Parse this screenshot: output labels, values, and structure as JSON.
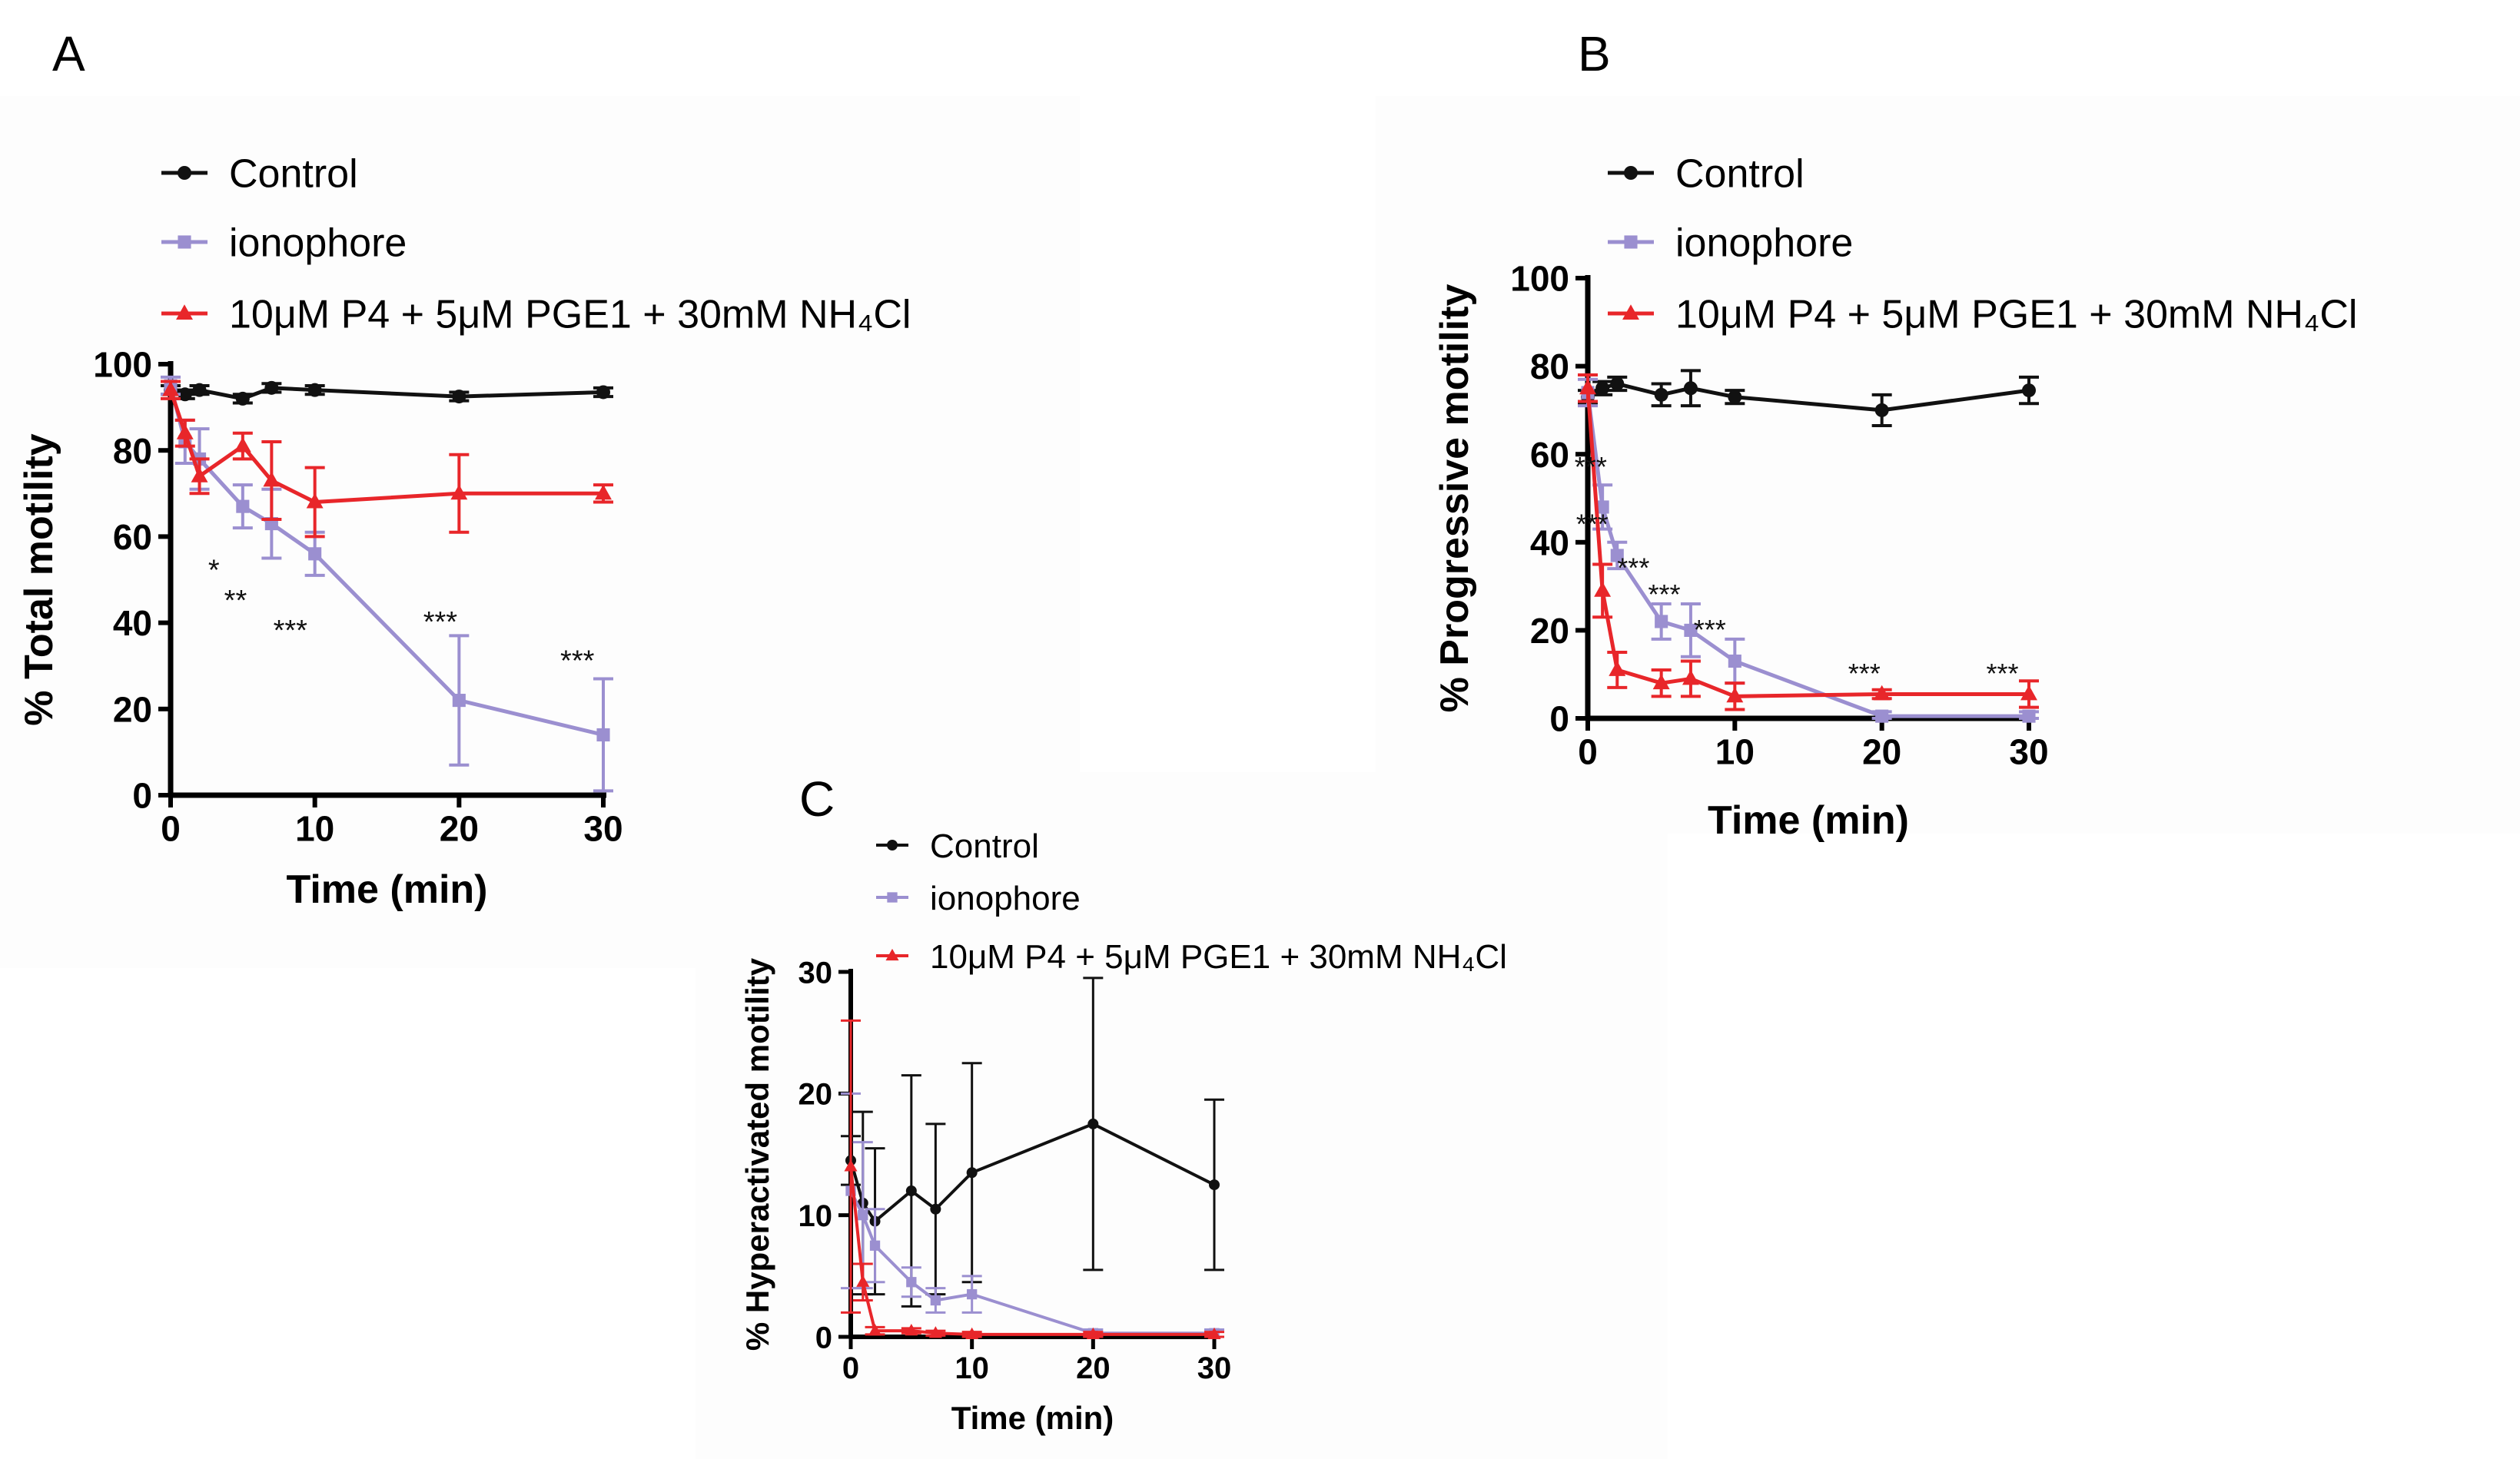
{
  "figure": {
    "legend_labels": {
      "control": "Control",
      "ionophore": "ionophore",
      "treatment": "10μM P4 + 5μM PGE1 + 30mM NH₄Cl"
    }
  },
  "colors": {
    "control": "#111111",
    "ionophore": "#9b8fd0",
    "treatment": "#e8262a"
  },
  "chart_data": [
    {
      "panel": "A",
      "type": "line",
      "xlabel": "Time (min)",
      "ylabel": "% Total motility",
      "xlim": [
        0,
        30
      ],
      "ylim": [
        0,
        100
      ],
      "xticks": [
        0,
        10,
        20,
        30
      ],
      "yticks": [
        0,
        20,
        40,
        60,
        80,
        100
      ],
      "series": [
        {
          "name": "Control",
          "key": "control",
          "marker": "circle",
          "x": [
            0,
            1,
            2,
            5,
            7,
            10,
            20,
            30
          ],
          "y": [
            94,
            93,
            94,
            92,
            94.5,
            94,
            92.5,
            93.5
          ],
          "err": [
            1,
            1,
            1,
            1,
            1,
            1,
            1,
            1
          ]
        },
        {
          "name": "ionophore",
          "key": "ionophore",
          "marker": "square",
          "x": [
            0,
            1,
            2,
            5,
            7,
            10,
            20,
            30
          ],
          "y": [
            95,
            82,
            78,
            67,
            63,
            56,
            22,
            14
          ],
          "err": [
            2,
            5,
            7,
            5,
            8,
            5,
            15,
            13
          ]
        },
        {
          "name": "10μM P4 + 5μM PGE1 + 30mM NH₄Cl",
          "key": "treatment",
          "marker": "triangle",
          "x": [
            0,
            1,
            2,
            5,
            7,
            10,
            20,
            30
          ],
          "y": [
            94,
            84,
            74,
            81,
            73,
            68,
            70,
            70
          ],
          "err": [
            2,
            3,
            4,
            3,
            9,
            8,
            9,
            2
          ]
        }
      ],
      "annotations": [
        {
          "x": 3,
          "y": 50,
          "text": "*"
        },
        {
          "x": 4.5,
          "y": 43,
          "text": "**"
        },
        {
          "x": 8.3,
          "y": 36,
          "text": "***"
        },
        {
          "x": 18.7,
          "y": 38,
          "text": "***"
        },
        {
          "x": 28.2,
          "y": 29,
          "text": "***"
        }
      ]
    },
    {
      "panel": "B",
      "type": "line",
      "xlabel": "Time (min)",
      "ylabel": "% Progressive motility",
      "xlim": [
        0,
        30
      ],
      "ylim": [
        0,
        100
      ],
      "xticks": [
        0,
        10,
        20,
        30
      ],
      "yticks": [
        0,
        20,
        40,
        60,
        80,
        100
      ],
      "series": [
        {
          "name": "Control",
          "key": "control",
          "marker": "circle",
          "x": [
            0,
            1,
            2,
            5,
            7,
            10,
            20,
            30
          ],
          "y": [
            73,
            75,
            76,
            73.5,
            75,
            73,
            70,
            74.5
          ],
          "err": [
            1.5,
            1.5,
            1.5,
            2.5,
            4,
            1.5,
            3.5,
            3
          ]
        },
        {
          "name": "ionophore",
          "key": "ionophore",
          "marker": "square",
          "x": [
            0,
            1,
            2,
            5,
            7,
            10,
            20,
            30
          ],
          "y": [
            74,
            48,
            37,
            22,
            20,
            13,
            0.5,
            0.5
          ],
          "err": [
            3,
            5,
            3,
            4,
            6,
            5,
            1,
            1
          ]
        },
        {
          "name": "10μM P4 + 5μM PGE1 + 30mM NH₄Cl",
          "key": "treatment",
          "marker": "triangle",
          "x": [
            0,
            1,
            2,
            5,
            7,
            10,
            20,
            30
          ],
          "y": [
            75,
            29,
            11,
            8,
            9,
            5,
            5.5,
            5.5
          ],
          "err": [
            3,
            6,
            4,
            3,
            4,
            3,
            1,
            3
          ]
        }
      ],
      "annotations": [
        {
          "x": 0.2,
          "y": 55,
          "text": "***"
        },
        {
          "x": 0.3,
          "y": 42,
          "text": "***"
        },
        {
          "x": 3.1,
          "y": 32,
          "text": "***"
        },
        {
          "x": 5.2,
          "y": 26,
          "text": "***"
        },
        {
          "x": 8.3,
          "y": 18,
          "text": "***"
        },
        {
          "x": 18.8,
          "y": 8,
          "text": "***"
        },
        {
          "x": 28.2,
          "y": 8,
          "text": "***"
        }
      ]
    },
    {
      "panel": "C",
      "type": "line",
      "xlabel": "Time (min)",
      "ylabel": "% Hyperactivated motility",
      "xlim": [
        0,
        30
      ],
      "ylim": [
        0,
        30
      ],
      "xticks": [
        0,
        10,
        20,
        30
      ],
      "yticks": [
        0,
        10,
        20,
        30
      ],
      "series": [
        {
          "name": "Control",
          "key": "control",
          "marker": "circle",
          "x": [
            0,
            1,
            2,
            5,
            7,
            10,
            20,
            30
          ],
          "y": [
            14.5,
            11,
            9.5,
            12,
            10.5,
            13.5,
            17.5,
            12.5
          ],
          "err": [
            2,
            7.5,
            6,
            9.5,
            7,
            9,
            12,
            7
          ]
        },
        {
          "name": "ionophore",
          "key": "ionophore",
          "marker": "square",
          "x": [
            0,
            1,
            2,
            5,
            7,
            10,
            20,
            30
          ],
          "y": [
            12,
            10,
            7.5,
            4.5,
            3,
            3.5,
            0.3,
            0.3
          ],
          "err": [
            8,
            6,
            3,
            1.2,
            1,
            1.5,
            0.3,
            0.3
          ]
        },
        {
          "name": "10μM P4 + 5μM PGE1 + 30mM NH₄Cl",
          "key": "treatment",
          "marker": "triangle",
          "x": [
            0,
            1,
            2,
            5,
            7,
            10,
            20,
            30
          ],
          "y": [
            14,
            4.5,
            0.5,
            0.5,
            0.3,
            0.2,
            0.2,
            0.2
          ],
          "err": [
            12,
            1.5,
            0.3,
            0.2,
            0.2,
            0.2,
            0.2,
            0.2
          ]
        }
      ],
      "annotations": []
    }
  ]
}
